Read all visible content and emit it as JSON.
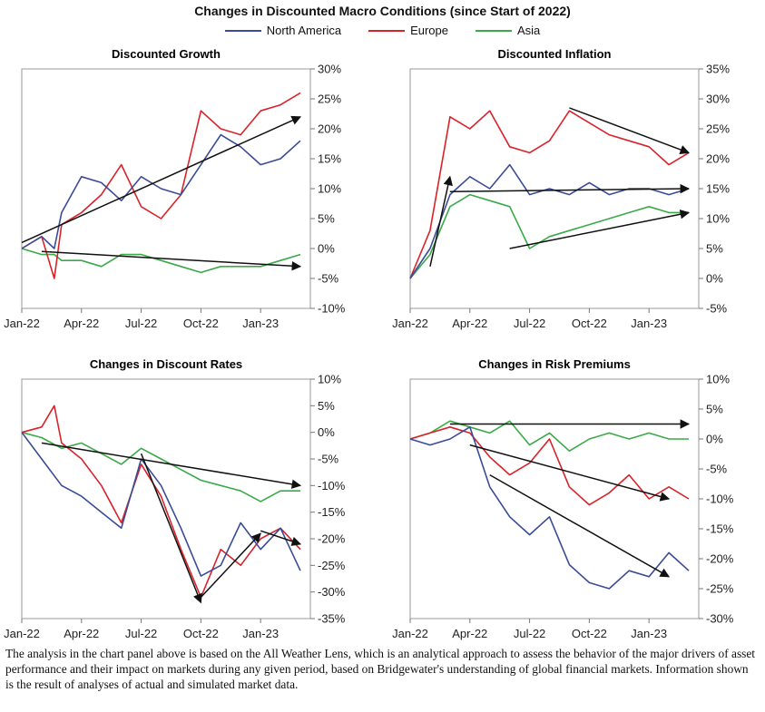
{
  "title": "Changes in Discounted Macro Conditions (since Start of 2022)",
  "legend": [
    {
      "name": "North America",
      "color": "#3a4b97"
    },
    {
      "name": "Europe",
      "color": "#d8232a"
    },
    {
      "name": "Asia",
      "color": "#3aaa48"
    }
  ],
  "footnote": "The analysis in the chart panel above is based on the All Weather Lens, which is an analytical approach to assess the behavior of the major drivers of asset performance and their impact on markets during any given period, based on Bridgewater's understanding of global financial markets. Information shown is the result of analyses of actual and simulated market data.",
  "chart_data": [
    {
      "type": "line",
      "title": "Discounted Growth",
      "x_ticks": [
        "Jan-22",
        "Apr-22",
        "Jul-22",
        "Oct-22",
        "Jan-23"
      ],
      "y_ticks": [
        "30%",
        "25%",
        "20%",
        "15%",
        "10%",
        "5%",
        "0%",
        "-5%",
        "-10%"
      ],
      "x_range": [
        "2022-01",
        "2023-03"
      ],
      "ylim": [
        -10,
        30
      ],
      "y_axis_position": "right",
      "grid": false,
      "series": [
        {
          "name": "North America",
          "color": "#3a4b97",
          "x": [
            "2022-01",
            "2022-02",
            "2022-02-20",
            "2022-03",
            "2022-04",
            "2022-05",
            "2022-06",
            "2022-07",
            "2022-08",
            "2022-09",
            "2022-10",
            "2022-11",
            "2022-12",
            "2023-01",
            "2023-02",
            "2023-03"
          ],
          "values": [
            0,
            2,
            0,
            6,
            12,
            11,
            8,
            12,
            10,
            9,
            14,
            19,
            17,
            14,
            15,
            18
          ]
        },
        {
          "name": "Europe",
          "color": "#d8232a",
          "x": [
            "2022-01",
            "2022-02",
            "2022-02-20",
            "2022-03",
            "2022-04",
            "2022-05",
            "2022-06",
            "2022-07",
            "2022-08",
            "2022-09",
            "2022-10",
            "2022-11",
            "2022-12",
            "2023-01",
            "2023-02",
            "2023-03"
          ],
          "values": [
            0,
            2,
            -5,
            4,
            6,
            9,
            14,
            7,
            5,
            9,
            23,
            20,
            19,
            23,
            24,
            26
          ]
        },
        {
          "name": "Asia",
          "color": "#3aaa48",
          "x": [
            "2022-01",
            "2022-02",
            "2022-02-20",
            "2022-03",
            "2022-04",
            "2022-05",
            "2022-06",
            "2022-07",
            "2022-08",
            "2022-09",
            "2022-10",
            "2022-11",
            "2022-12",
            "2023-01",
            "2023-02",
            "2023-03"
          ],
          "values": [
            0,
            -1,
            -1,
            -2,
            -2,
            -3,
            -1,
            -1,
            -2,
            -3,
            -4,
            -3,
            -3,
            -3,
            -2,
            -1
          ]
        }
      ],
      "annotation_arrows": [
        {
          "from": [
            "2022-01",
            1
          ],
          "to": [
            "2023-03",
            22
          ]
        },
        {
          "from": [
            "2022-02",
            -0.5
          ],
          "to": [
            "2023-03",
            -3
          ]
        }
      ]
    },
    {
      "type": "line",
      "title": "Discounted Inflation",
      "x_ticks": [
        "Jan-22",
        "Apr-22",
        "Jul-22",
        "Oct-22",
        "Jan-23"
      ],
      "y_ticks": [
        "35%",
        "30%",
        "25%",
        "20%",
        "15%",
        "10%",
        "5%",
        "0%",
        "-5%"
      ],
      "x_range": [
        "2022-01",
        "2023-03"
      ],
      "ylim": [
        -5,
        35
      ],
      "y_axis_position": "right",
      "grid": false,
      "series": [
        {
          "name": "North America",
          "color": "#3a4b97",
          "x": [
            "2022-01",
            "2022-02",
            "2022-03",
            "2022-04",
            "2022-05",
            "2022-06",
            "2022-07",
            "2022-08",
            "2022-09",
            "2022-10",
            "2022-11",
            "2022-12",
            "2023-01",
            "2023-02",
            "2023-03"
          ],
          "values": [
            0,
            5,
            14,
            17,
            15,
            19,
            14,
            15,
            14,
            16,
            14,
            15,
            15,
            14,
            15
          ]
        },
        {
          "name": "Europe",
          "color": "#d8232a",
          "x": [
            "2022-01",
            "2022-02",
            "2022-03",
            "2022-04",
            "2022-05",
            "2022-06",
            "2022-07",
            "2022-08",
            "2022-09",
            "2022-10",
            "2022-11",
            "2022-12",
            "2023-01",
            "2023-02",
            "2023-03"
          ],
          "values": [
            0,
            8,
            27,
            25,
            28,
            22,
            21,
            23,
            28,
            26,
            24,
            23,
            22,
            19,
            21
          ]
        },
        {
          "name": "Asia",
          "color": "#3aaa48",
          "x": [
            "2022-01",
            "2022-02",
            "2022-03",
            "2022-04",
            "2022-05",
            "2022-06",
            "2022-07",
            "2022-08",
            "2022-09",
            "2022-10",
            "2022-11",
            "2022-12",
            "2023-01",
            "2023-02",
            "2023-03"
          ],
          "values": [
            0,
            4,
            12,
            14,
            13,
            12,
            5,
            7,
            8,
            9,
            10,
            11,
            12,
            11,
            11
          ]
        }
      ],
      "annotation_arrows": [
        {
          "from": [
            "2022-02",
            2
          ],
          "to": [
            "2022-03",
            17
          ]
        },
        {
          "from": [
            "2022-03",
            14.5
          ],
          "to": [
            "2023-03",
            15
          ]
        },
        {
          "from": [
            "2022-09",
            28.5
          ],
          "to": [
            "2023-03",
            21
          ]
        },
        {
          "from": [
            "2022-06",
            5
          ],
          "to": [
            "2023-03",
            11
          ]
        }
      ]
    },
    {
      "type": "line",
      "title": "Changes in Discount Rates",
      "x_ticks": [
        "Jan-22",
        "Apr-22",
        "Jul-22",
        "Oct-22",
        "Jan-23"
      ],
      "y_ticks": [
        "10%",
        "5%",
        "0%",
        "-5%",
        "-10%",
        "-15%",
        "-20%",
        "-25%",
        "-30%",
        "-35%"
      ],
      "x_range": [
        "2022-01",
        "2023-03"
      ],
      "ylim": [
        -35,
        10
      ],
      "y_axis_position": "right",
      "grid": false,
      "series": [
        {
          "name": "North America",
          "color": "#3a4b97",
          "x": [
            "2022-01",
            "2022-02",
            "2022-03",
            "2022-04",
            "2022-05",
            "2022-06",
            "2022-07",
            "2022-08",
            "2022-09",
            "2022-10",
            "2022-11",
            "2022-12",
            "2023-01",
            "2023-02",
            "2023-03"
          ],
          "values": [
            0,
            -5,
            -10,
            -12,
            -15,
            -18,
            -5,
            -10,
            -18,
            -27,
            -25,
            -17,
            -22,
            -18,
            -26
          ]
        },
        {
          "name": "Europe",
          "color": "#d8232a",
          "x": [
            "2022-01",
            "2022-02",
            "2022-02-20",
            "2022-03",
            "2022-04",
            "2022-05",
            "2022-06",
            "2022-07",
            "2022-08",
            "2022-09",
            "2022-10",
            "2022-11",
            "2022-12",
            "2023-01",
            "2023-02",
            "2023-03"
          ],
          "values": [
            0,
            1,
            5,
            -2,
            -5,
            -10,
            -17,
            -6,
            -12,
            -22,
            -31,
            -22,
            -25,
            -20,
            -18,
            -22
          ]
        },
        {
          "name": "Asia",
          "color": "#3aaa48",
          "x": [
            "2022-01",
            "2022-02",
            "2022-03",
            "2022-04",
            "2022-05",
            "2022-06",
            "2022-07",
            "2022-08",
            "2022-09",
            "2022-10",
            "2022-11",
            "2022-12",
            "2023-01",
            "2023-02",
            "2023-03"
          ],
          "values": [
            0,
            -1,
            -3,
            -2,
            -4,
            -6,
            -3,
            -5,
            -7,
            -9,
            -10,
            -11,
            -13,
            -11,
            -11
          ]
        }
      ],
      "annotation_arrows": [
        {
          "from": [
            "2022-02",
            -2
          ],
          "to": [
            "2023-03",
            -10
          ]
        },
        {
          "from": [
            "2022-07",
            -4
          ],
          "to": [
            "2022-10",
            -32
          ]
        },
        {
          "from": [
            "2022-10",
            -31
          ],
          "to": [
            "2023-01",
            -19
          ]
        },
        {
          "from": [
            "2023-01",
            -18.5
          ],
          "to": [
            "2023-03",
            -21
          ]
        }
      ]
    },
    {
      "type": "line",
      "title": "Changes in Risk Premiums",
      "x_ticks": [
        "Jan-22",
        "Apr-22",
        "Jul-22",
        "Oct-22",
        "Jan-23"
      ],
      "y_ticks": [
        "10%",
        "5%",
        "0%",
        "-5%",
        "-10%",
        "-15%",
        "-20%",
        "-25%",
        "-30%"
      ],
      "x_range": [
        "2022-01",
        "2023-03"
      ],
      "ylim": [
        -30,
        10
      ],
      "y_axis_position": "right",
      "grid": false,
      "series": [
        {
          "name": "North America",
          "color": "#3a4b97",
          "x": [
            "2022-01",
            "2022-02",
            "2022-03",
            "2022-04",
            "2022-05",
            "2022-06",
            "2022-07",
            "2022-08",
            "2022-09",
            "2022-10",
            "2022-11",
            "2022-12",
            "2023-01",
            "2023-02",
            "2023-03"
          ],
          "values": [
            0,
            -1,
            0,
            2,
            -8,
            -13,
            -16,
            -13,
            -21,
            -24,
            -25,
            -22,
            -23,
            -19,
            -22
          ]
        },
        {
          "name": "Europe",
          "color": "#d8232a",
          "x": [
            "2022-01",
            "2022-02",
            "2022-03",
            "2022-04",
            "2022-05",
            "2022-06",
            "2022-07",
            "2022-08",
            "2022-09",
            "2022-10",
            "2022-11",
            "2022-12",
            "2023-01",
            "2023-02",
            "2023-03"
          ],
          "values": [
            0,
            1,
            2,
            1,
            -3,
            -6,
            -4,
            0,
            -8,
            -11,
            -9,
            -6,
            -10,
            -8,
            -10
          ]
        },
        {
          "name": "Asia",
          "color": "#3aaa48",
          "x": [
            "2022-01",
            "2022-02",
            "2022-03",
            "2022-04",
            "2022-05",
            "2022-06",
            "2022-07",
            "2022-08",
            "2022-09",
            "2022-10",
            "2022-11",
            "2022-12",
            "2023-01",
            "2023-02",
            "2023-03"
          ],
          "values": [
            0,
            1,
            3,
            2,
            1,
            3,
            -1,
            1,
            -2,
            0,
            1,
            0,
            1,
            0,
            0
          ]
        }
      ],
      "annotation_arrows": [
        {
          "from": [
            "2022-03",
            2.5
          ],
          "to": [
            "2023-03",
            2.5
          ]
        },
        {
          "from": [
            "2022-04",
            -1
          ],
          "to": [
            "2023-02",
            -10
          ]
        },
        {
          "from": [
            "2022-05",
            -6
          ],
          "to": [
            "2023-02",
            -23
          ]
        }
      ]
    }
  ]
}
